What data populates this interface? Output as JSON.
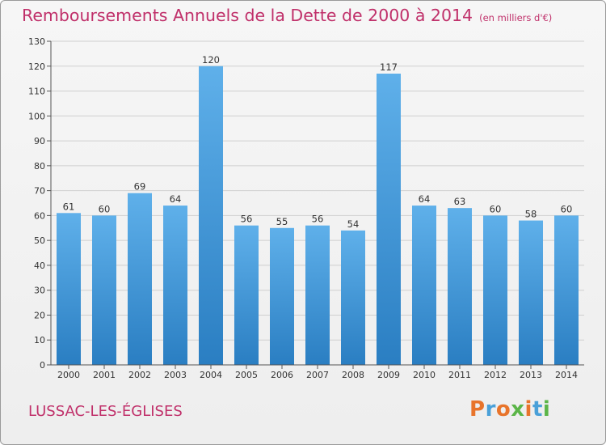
{
  "title": "Remboursements Annuels de la Dette de 2000 à 2014",
  "title_unit": "(en milliers d'€)",
  "commune": "LUSSAC-LES-ÉGLISES",
  "logo": {
    "text": "Proxiti",
    "colors": [
      "#e8742b",
      "#4aa0d8",
      "#e8742b",
      "#5bb548",
      "#e8742b",
      "#4aa0d8",
      "#5bb548"
    ]
  },
  "colors": {
    "bar_top": "#5fb0ea",
    "bar_bottom": "#2a7ec2",
    "title": "#c0306a",
    "grid": "#cfcfcf"
  },
  "chart_data": {
    "type": "bar",
    "title": "Remboursements Annuels de la Dette de 2000 à 2014",
    "xlabel": "",
    "ylabel": "",
    "categories": [
      "2000",
      "2001",
      "2002",
      "2003",
      "2004",
      "2005",
      "2006",
      "2007",
      "2008",
      "2009",
      "2010",
      "2011",
      "2012",
      "2013",
      "2014"
    ],
    "values": [
      61,
      60,
      69,
      64,
      120,
      56,
      55,
      56,
      54,
      117,
      64,
      63,
      60,
      58,
      60
    ],
    "ylim": [
      0,
      130
    ],
    "yticks": [
      0,
      10,
      20,
      30,
      40,
      50,
      60,
      70,
      80,
      90,
      100,
      110,
      120,
      130
    ],
    "grid": true,
    "data_labels": true
  }
}
